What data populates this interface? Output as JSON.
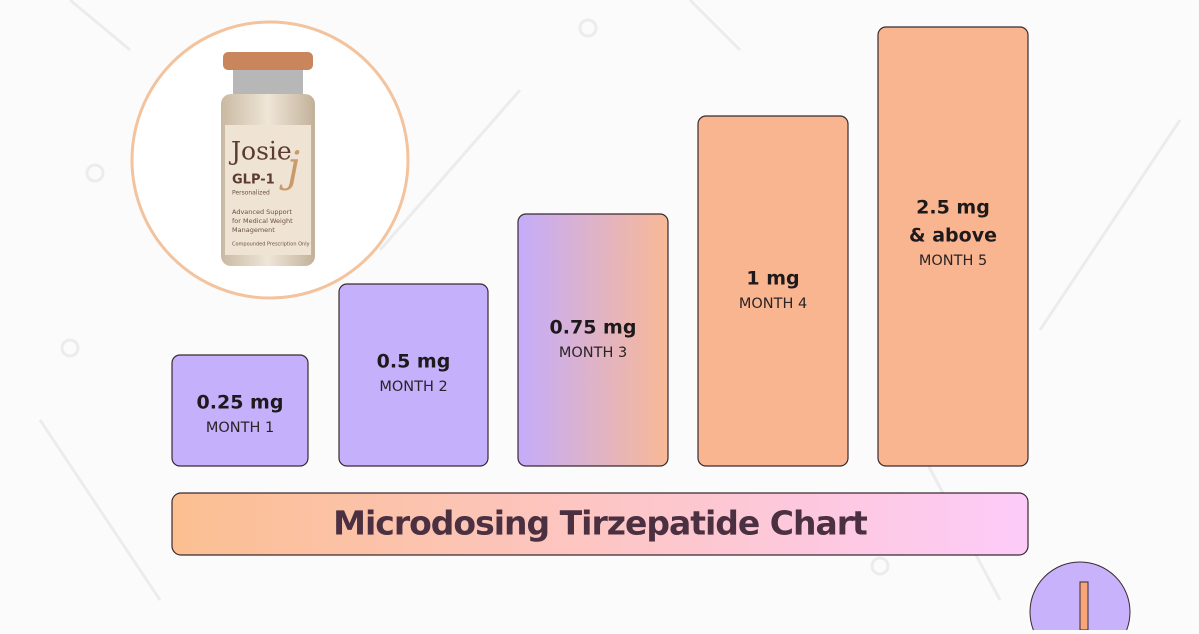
{
  "vial": {
    "brand": "Josie",
    "logo": "j",
    "product": "GLP-1",
    "subtitle": "Personalized",
    "description": [
      "Advanced Support",
      "for Medical Weight",
      "Management"
    ],
    "note": "Compounded Prescription Only"
  },
  "steps": [
    {
      "dose": [
        "0.25 mg"
      ],
      "month": "MONTH 1"
    },
    {
      "dose": [
        "0.5 mg"
      ],
      "month": "MONTH 2"
    },
    {
      "dose": [
        "0.75 mg"
      ],
      "month": "MONTH 3"
    },
    {
      "dose": [
        "1 mg"
      ],
      "month": "MONTH 4"
    },
    {
      "dose": [
        "2.5 mg",
        "& above"
      ],
      "month": "MONTH 5"
    }
  ],
  "title": "Microdosing Tirzepatide Chart"
}
